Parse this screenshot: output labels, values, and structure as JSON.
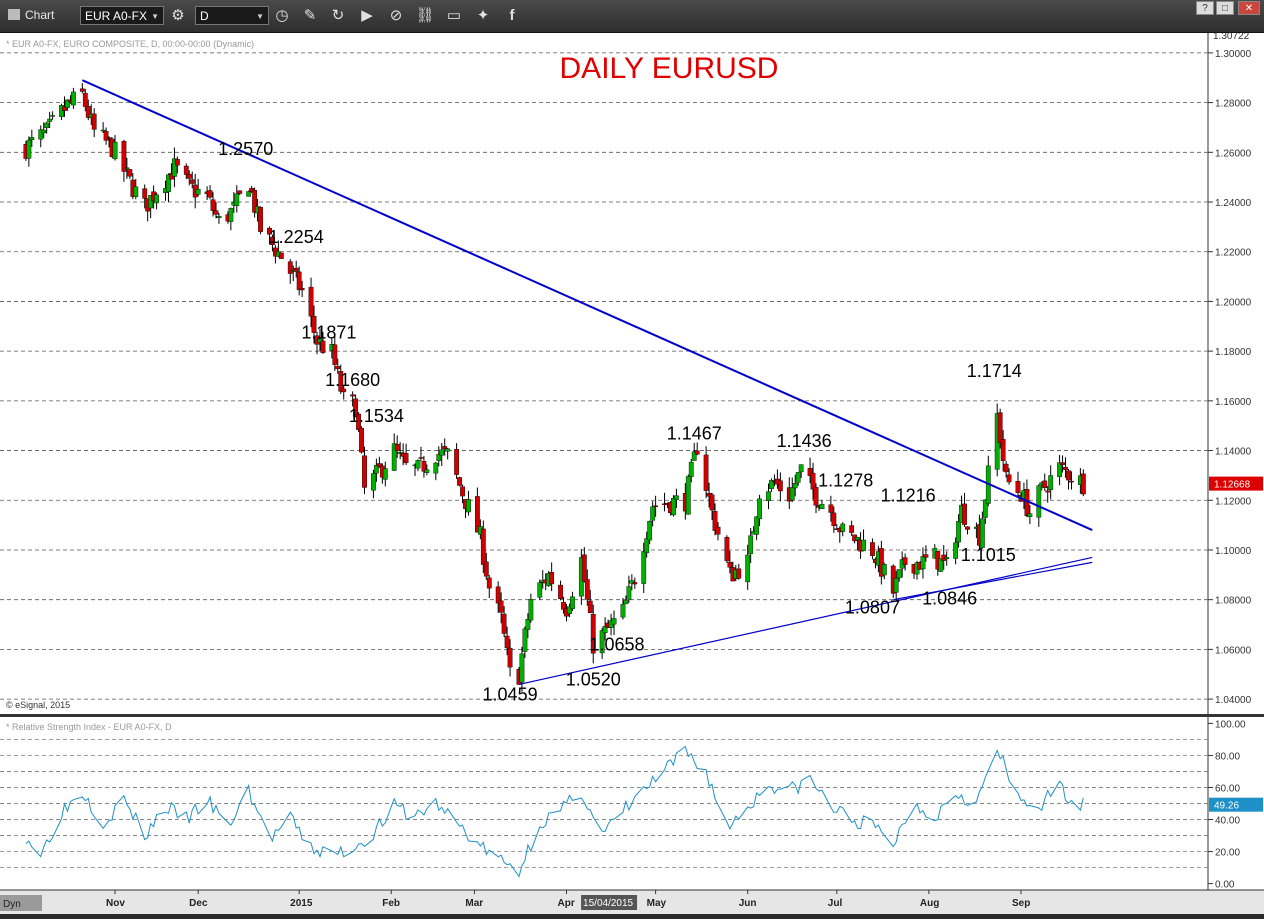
{
  "toolbar": {
    "title": "Chart",
    "symbol": "EUR A0-FX",
    "interval": "D",
    "icons": [
      "settings-icon",
      "clock-icon",
      "pencil-icon",
      "refresh-icon",
      "play-icon",
      "compass-icon",
      "link-icon",
      "comment-icon",
      "twitter-icon",
      "facebook-icon"
    ],
    "window_buttons": [
      "?",
      "□",
      "✕"
    ]
  },
  "chart_data": [
    {
      "type": "candlestick",
      "title": "DAILY EURUSD",
      "subtitle": "* EUR A0-FX, EURO COMPOSITE, D, 00:00-00:00 (Dynamic)",
      "copyright": "© eSignal, 2015",
      "y_ticks": [
        "1.30000",
        "1.28000",
        "1.26000",
        "1.24000",
        "1.22000",
        "1.20000",
        "1.18000",
        "1.16000",
        "1.14000",
        "1.12000",
        "1.10000",
        "1.08000",
        "1.06000",
        "1.04000"
      ],
      "ylim": [
        1.034,
        1.308
      ],
      "top_price_label": "1.30722",
      "last_price_label": "1.12668",
      "last_price": 1.1267,
      "x_labels": [
        "Nov",
        "Dec",
        "2015",
        "Feb",
        "Mar",
        "Apr",
        "May",
        "Jun",
        "Jul",
        "Aug",
        "Sep"
      ],
      "cursor_date": "15/04/2015",
      "colors": {
        "up": "#00b000",
        "down": "#d00000",
        "trend": "#0000cc",
        "title": "#e00000",
        "price_badge": "#dd0000"
      },
      "annotations": [
        "1.2570",
        "1.2254",
        "1.1871",
        "1.1680",
        "1.1534",
        "1.0459",
        "1.0520",
        "1.0658",
        "1.1467",
        "1.1436",
        "1.1278",
        "1.1216",
        "1.0807",
        "1.0846",
        "1.1015",
        "1.1714"
      ],
      "trendlines": [
        {
          "from": [
            "2014-10-20",
            1.289
          ],
          "to": [
            "2015-09-25",
            1.108
          ]
        },
        {
          "from": [
            "2015-03-16",
            1.0459
          ],
          "to": [
            "2015-09-25",
            1.097
          ]
        },
        {
          "from": [
            "2015-07-20",
            1.08
          ],
          "to": [
            "2015-09-25",
            1.095
          ]
        }
      ],
      "close_path": [
        [
          "2014-10-01",
          1.262
        ],
        [
          "2014-10-08",
          1.268
        ],
        [
          "2014-10-15",
          1.279
        ],
        [
          "2014-10-20",
          1.283
        ],
        [
          "2014-10-24",
          1.268
        ],
        [
          "2014-10-30",
          1.262
        ],
        [
          "2014-11-05",
          1.248
        ],
        [
          "2014-11-10",
          1.238
        ],
        [
          "2014-11-14",
          1.245
        ],
        [
          "2014-11-20",
          1.254
        ],
        [
          "2014-11-25",
          1.246
        ],
        [
          "2014-12-01",
          1.242
        ],
        [
          "2014-12-05",
          1.232
        ],
        [
          "2014-12-10",
          1.237
        ],
        [
          "2014-12-15",
          1.248
        ],
        [
          "2014-12-19",
          1.229
        ],
        [
          "2014-12-26",
          1.218
        ],
        [
          "2015-01-02",
          1.204
        ],
        [
          "2015-01-07",
          1.184
        ],
        [
          "2015-01-12",
          1.179
        ],
        [
          "2015-01-16",
          1.16
        ],
        [
          "2015-01-20",
          1.158
        ],
        [
          "2015-01-23",
          1.124
        ],
        [
          "2015-01-27",
          1.13
        ],
        [
          "2015-02-02",
          1.14
        ],
        [
          "2015-02-06",
          1.133
        ],
        [
          "2015-02-10",
          1.132
        ],
        [
          "2015-02-16",
          1.139
        ],
        [
          "2015-02-20",
          1.138
        ],
        [
          "2015-02-26",
          1.12
        ],
        [
          "2015-03-03",
          1.105
        ],
        [
          "2015-03-06",
          1.085
        ],
        [
          "2015-03-10",
          1.072
        ],
        [
          "2015-03-13",
          1.05
        ],
        [
          "2015-03-16",
          1.05
        ],
        [
          "2015-03-20",
          1.08
        ],
        [
          "2015-03-26",
          1.09
        ],
        [
          "2015-04-01",
          1.077
        ],
        [
          "2015-04-06",
          1.096
        ],
        [
          "2015-04-10",
          1.062
        ],
        [
          "2015-04-15",
          1.068
        ],
        [
          "2015-04-20",
          1.075
        ],
        [
          "2015-04-24",
          1.089
        ],
        [
          "2015-04-30",
          1.118
        ],
        [
          "2015-05-05",
          1.119
        ],
        [
          "2015-05-11",
          1.12
        ],
        [
          "2015-05-15",
          1.142
        ],
        [
          "2015-05-20",
          1.115
        ],
        [
          "2015-05-26",
          1.09
        ],
        [
          "2015-06-01",
          1.095
        ],
        [
          "2015-06-05",
          1.124
        ],
        [
          "2015-06-10",
          1.127
        ],
        [
          "2015-06-15",
          1.122
        ],
        [
          "2015-06-19",
          1.132
        ],
        [
          "2015-06-24",
          1.122
        ],
        [
          "2015-06-29",
          1.116
        ],
        [
          "2015-07-03",
          1.107
        ],
        [
          "2015-07-08",
          1.104
        ],
        [
          "2015-07-13",
          1.1
        ],
        [
          "2015-07-20",
          1.083
        ],
        [
          "2015-07-24",
          1.095
        ],
        [
          "2015-07-30",
          1.095
        ],
        [
          "2015-08-03",
          1.097
        ],
        [
          "2015-08-07",
          1.093
        ],
        [
          "2015-08-12",
          1.116
        ],
        [
          "2015-08-18",
          1.106
        ],
        [
          "2015-08-24",
          1.154
        ],
        [
          "2015-08-27",
          1.128
        ],
        [
          "2015-09-01",
          1.123
        ],
        [
          "2015-09-04",
          1.115
        ],
        [
          "2015-09-08",
          1.124
        ],
        [
          "2015-09-14",
          1.133
        ],
        [
          "2015-09-18",
          1.13
        ],
        [
          "2015-09-22",
          1.127
        ]
      ]
    },
    {
      "type": "line",
      "title": "* Relative Strength Index - EUR A0-FX, D",
      "y_ticks": [
        "100.00",
        "80.00",
        "60.00",
        "40.00",
        "20.00",
        "0.00"
      ],
      "ylim": [
        -4,
        104
      ],
      "last_value_label": "49.26",
      "colors": {
        "line": "#1e90c8",
        "badge": "#1e90c8"
      },
      "rsi_path": [
        [
          "2014-10-01",
          30
        ],
        [
          "2014-10-06",
          18
        ],
        [
          "2014-10-13",
          45
        ],
        [
          "2014-10-20",
          58
        ],
        [
          "2014-10-27",
          38
        ],
        [
          "2014-11-03",
          52
        ],
        [
          "2014-11-10",
          30
        ],
        [
          "2014-11-17",
          48
        ],
        [
          "2014-11-24",
          40
        ],
        [
          "2014-12-01",
          52
        ],
        [
          "2014-12-08",
          35
        ],
        [
          "2014-12-15",
          58
        ],
        [
          "2014-12-22",
          28
        ],
        [
          "2014-12-29",
          40
        ],
        [
          "2015-01-05",
          22
        ],
        [
          "2015-01-12",
          18
        ],
        [
          "2015-01-19",
          22
        ],
        [
          "2015-01-26",
          32
        ],
        [
          "2015-02-02",
          48
        ],
        [
          "2015-02-09",
          42
        ],
        [
          "2015-02-16",
          50
        ],
        [
          "2015-02-23",
          38
        ],
        [
          "2015-03-02",
          25
        ],
        [
          "2015-03-09",
          15
        ],
        [
          "2015-03-16",
          8
        ],
        [
          "2015-03-23",
          38
        ],
        [
          "2015-03-30",
          45
        ],
        [
          "2015-04-06",
          58
        ],
        [
          "2015-04-13",
          30
        ],
        [
          "2015-04-20",
          45
        ],
        [
          "2015-04-27",
          58
        ],
        [
          "2015-05-04",
          70
        ],
        [
          "2015-05-11",
          82
        ],
        [
          "2015-05-18",
          70
        ],
        [
          "2015-05-25",
          35
        ],
        [
          "2015-06-01",
          48
        ],
        [
          "2015-06-08",
          62
        ],
        [
          "2015-06-15",
          58
        ],
        [
          "2015-06-22",
          65
        ],
        [
          "2015-06-29",
          48
        ],
        [
          "2015-07-06",
          40
        ],
        [
          "2015-07-13",
          36
        ],
        [
          "2015-07-20",
          25
        ],
        [
          "2015-07-27",
          50
        ],
        [
          "2015-08-03",
          42
        ],
        [
          "2015-08-10",
          58
        ],
        [
          "2015-08-17",
          50
        ],
        [
          "2015-08-24",
          84
        ],
        [
          "2015-08-31",
          52
        ],
        [
          "2015-09-07",
          48
        ],
        [
          "2015-09-14",
          60
        ],
        [
          "2015-09-21",
          49
        ]
      ]
    }
  ]
}
